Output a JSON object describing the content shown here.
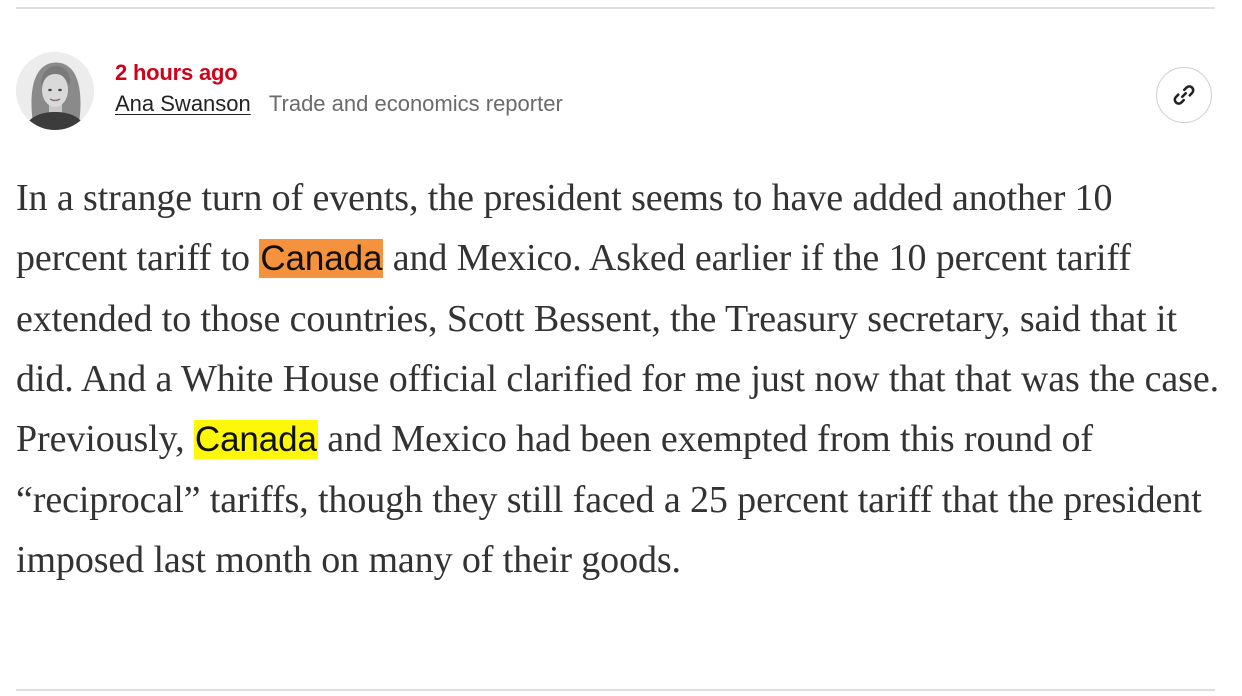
{
  "post": {
    "timestamp": "2 hours ago",
    "author": {
      "name": "Ana Swanson",
      "role": "Trade and economics reporter",
      "avatar_icon": "author-avatar"
    },
    "share_icon": "link-icon",
    "body": {
      "segment_1": "In a strange turn of events, the president seems to have added another 10 percent tariff to ",
      "highlight_1": "Canada",
      "segment_2": " and Mexico. Asked earlier if the 10 percent tariff extended to those countries, Scott Bessent, the Treasury secretary, said that it did. And a White House official clarified for me just now that that was the case. Previously, ",
      "highlight_2": "Canada",
      "segment_3": " and Mexico had been exempted from this round of “reciprocal” tariffs, though they still faced a 25 percent tariff that the president imposed last month on many of their goods."
    }
  },
  "colors": {
    "timestamp": "#d0021b",
    "highlight_orange": "#f5923e",
    "highlight_yellow": "#fdf709",
    "body_text": "#333333",
    "divider": "#dfdfdf"
  }
}
